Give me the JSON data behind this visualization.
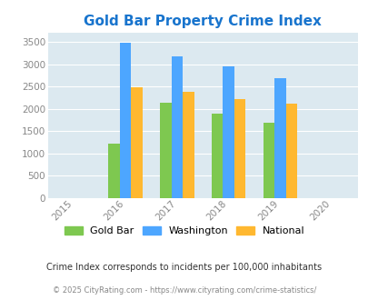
{
  "title": "Gold Bar Property Crime Index",
  "title_color": "#1874cd",
  "years": [
    2015,
    2016,
    2017,
    2018,
    2019,
    2020
  ],
  "x_positions": [
    2016,
    2017,
    2018,
    2019
  ],
  "gold_bar": [
    1220,
    2130,
    1900,
    1680
  ],
  "washington": [
    3490,
    3170,
    2960,
    2690
  ],
  "national": [
    2480,
    2380,
    2220,
    2120
  ],
  "bar_color_gold_bar": "#7ec850",
  "bar_color_washington": "#4da6ff",
  "bar_color_national": "#ffb830",
  "bar_width": 0.22,
  "xlim": [
    2014.5,
    2020.5
  ],
  "ylim": [
    0,
    3700
  ],
  "yticks": [
    0,
    500,
    1000,
    1500,
    2000,
    2500,
    3000,
    3500
  ],
  "plot_bg_color": "#dce9f0",
  "fig_bg_color": "#ffffff",
  "legend_labels": [
    "Gold Bar",
    "Washington",
    "National"
  ],
  "footnote1": "Crime Index corresponds to incidents per 100,000 inhabitants",
  "footnote2": "© 2025 CityRating.com - https://www.cityrating.com/crime-statistics/",
  "footnote1_color": "#333333",
  "footnote2_color": "#888888",
  "tick_color": "#888888",
  "grid_color": "#ffffff",
  "figsize": [
    4.06,
    3.3
  ],
  "dpi": 100
}
